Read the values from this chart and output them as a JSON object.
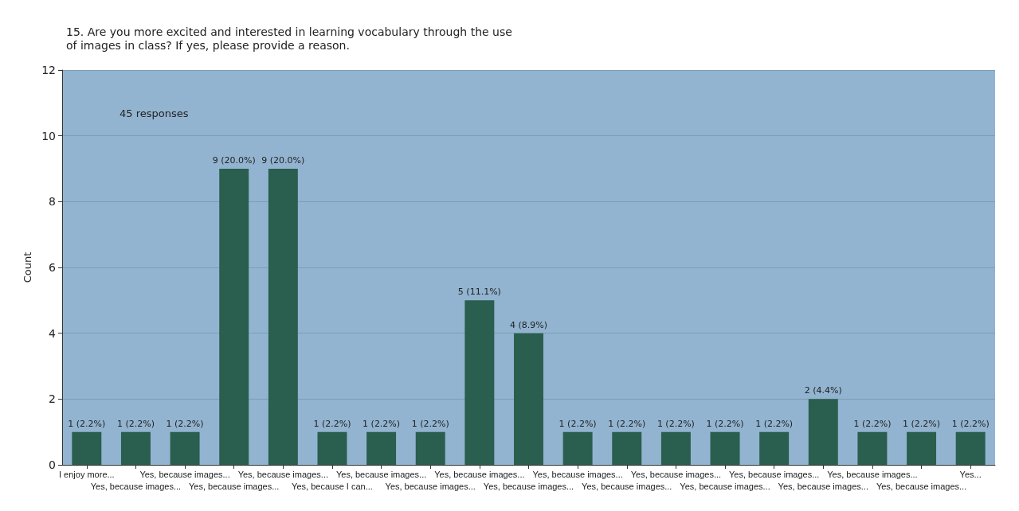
{
  "chart_data": {
    "type": "bar",
    "title": "15. Are you more excited and interested in learning vocabulary through the use\nof images in class? If yes, please provide a reason.",
    "ylabel": "Count",
    "annotations": [
      "45 responses"
    ],
    "categories": [
      "I enjoy more...",
      "Yes, because images...",
      "Yes, because images...",
      "Yes, because images...",
      "Yes, because images...",
      "Yes, because I can...",
      "Yes, because images...",
      "Yes, because images...",
      "Yes, because images...",
      "Yes, because images...",
      "Yes, because images...",
      "Yes, because images...",
      "Yes, because images...",
      "Yes, because images...",
      "Yes, because images...",
      "Yes, because images...",
      "Yes, because images...",
      "Yes, because images...",
      "Yes..."
    ],
    "values": [
      1,
      1,
      1,
      9,
      9,
      1,
      1,
      1,
      5,
      4,
      1,
      1,
      1,
      1,
      1,
      2,
      1,
      1,
      1
    ],
    "value_labels": [
      "1 (2.2%)",
      "1 (2.2%)",
      "1 (2.2%)",
      "9 (20.0%)",
      "9 (20.0%)",
      "1 (2.2%)",
      "1 (2.2%)",
      "1 (2.2%)",
      "5 (11.1%)",
      "4 (8.9%)",
      "1 (2.2%)",
      "1 (2.2%)",
      "1 (2.2%)",
      "1 (2.2%)",
      "1 (2.2%)",
      "2 (4.4%)",
      "1 (2.2%)",
      "1 (2.2%)",
      "1 (2.2%)"
    ],
    "color": "#2a5e4e",
    "ylim": [
      0,
      12
    ],
    "yticks": [
      0,
      2,
      4,
      6,
      8,
      10,
      12
    ],
    "grid": "y"
  }
}
